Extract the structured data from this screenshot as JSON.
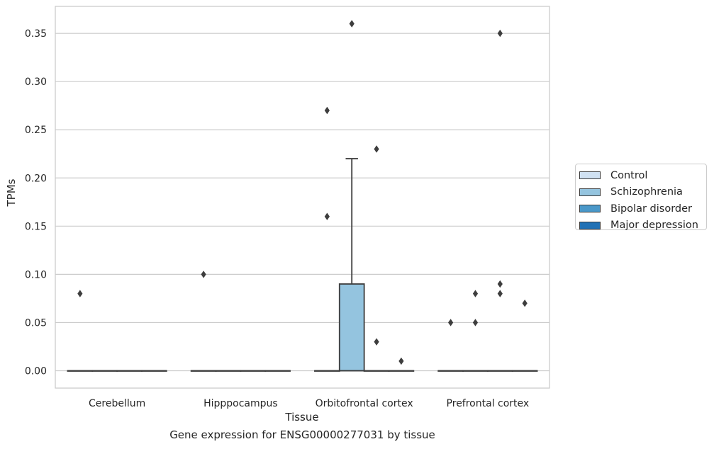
{
  "chart_data": {
    "type": "box",
    "title": "",
    "caption": "Gene expression for ENSG00000277031 by tissue",
    "xlabel": "Tissue",
    "ylabel": "TPMs",
    "ylim": [
      -0.018,
      0.378
    ],
    "yticks": [
      "0.00",
      "0.05",
      "0.10",
      "0.15",
      "0.20",
      "0.25",
      "0.30",
      "0.35"
    ],
    "ytick_values": [
      0,
      0.05,
      0.1,
      0.15,
      0.2,
      0.25,
      0.3,
      0.35
    ],
    "categories": [
      "Cerebellum",
      "Hipppocampus",
      "Orbitofrontal cortex",
      "Prefrontal cortex"
    ],
    "grid": "horizontal",
    "legend_position": "right",
    "series": [
      {
        "name": "Control",
        "color": "#d0e1f2",
        "boxes": [
          {
            "category": "Cerebellum",
            "q1": 0,
            "median": 0,
            "q3": 0,
            "whisker_low": 0,
            "whisker_high": 0,
            "outliers": [
              0.08
            ]
          },
          {
            "category": "Hipppocampus",
            "q1": 0,
            "median": 0,
            "q3": 0,
            "whisker_low": 0,
            "whisker_high": 0,
            "outliers": [
              0.1
            ]
          },
          {
            "category": "Orbitofrontal cortex",
            "q1": 0,
            "median": 0,
            "q3": 0,
            "whisker_low": 0,
            "whisker_high": 0,
            "outliers": [
              0.16,
              0.27
            ]
          },
          {
            "category": "Prefrontal cortex",
            "q1": 0,
            "median": 0,
            "q3": 0,
            "whisker_low": 0,
            "whisker_high": 0,
            "outliers": [
              0.05
            ]
          }
        ]
      },
      {
        "name": "Schizophrenia",
        "color": "#94c4df",
        "boxes": [
          {
            "category": "Cerebellum",
            "q1": 0,
            "median": 0,
            "q3": 0,
            "whisker_low": 0,
            "whisker_high": 0,
            "outliers": []
          },
          {
            "category": "Hipppocampus",
            "q1": 0,
            "median": 0,
            "q3": 0,
            "whisker_low": 0,
            "whisker_high": 0,
            "outliers": []
          },
          {
            "category": "Orbitofrontal cortex",
            "q1": 0,
            "median": 0,
            "q3": 0.09,
            "whisker_low": 0,
            "whisker_high": 0.22,
            "outliers": [
              0.36
            ]
          },
          {
            "category": "Prefrontal cortex",
            "q1": 0,
            "median": 0,
            "q3": 0,
            "whisker_low": 0,
            "whisker_high": 0,
            "outliers": [
              0.05,
              0.08
            ]
          }
        ]
      },
      {
        "name": "Bipolar disorder",
        "color": "#4a98c9",
        "boxes": [
          {
            "category": "Cerebellum",
            "q1": 0,
            "median": 0,
            "q3": 0,
            "whisker_low": 0,
            "whisker_high": 0,
            "outliers": []
          },
          {
            "category": "Hipppocampus",
            "q1": 0,
            "median": 0,
            "q3": 0,
            "whisker_low": 0,
            "whisker_high": 0,
            "outliers": []
          },
          {
            "category": "Orbitofrontal cortex",
            "q1": 0,
            "median": 0,
            "q3": 0,
            "whisker_low": 0,
            "whisker_high": 0,
            "outliers": [
              0.23,
              0.03
            ]
          },
          {
            "category": "Prefrontal cortex",
            "q1": 0,
            "median": 0,
            "q3": 0,
            "whisker_low": 0,
            "whisker_high": 0,
            "outliers": [
              0.35,
              0.09,
              0.08
            ]
          }
        ]
      },
      {
        "name": "Major depression",
        "color": "#2171b5",
        "boxes": [
          {
            "category": "Cerebellum",
            "q1": 0,
            "median": 0,
            "q3": 0,
            "whisker_low": 0,
            "whisker_high": 0,
            "outliers": []
          },
          {
            "category": "Hipppocampus",
            "q1": 0,
            "median": 0,
            "q3": 0,
            "whisker_low": 0,
            "whisker_high": 0,
            "outliers": []
          },
          {
            "category": "Orbitofrontal cortex",
            "q1": 0,
            "median": 0,
            "q3": 0,
            "whisker_low": 0,
            "whisker_high": 0,
            "outliers": [
              0.01
            ]
          },
          {
            "category": "Prefrontal cortex",
            "q1": 0,
            "median": 0,
            "q3": 0,
            "whisker_low": 0,
            "whisker_high": 0,
            "outliers": [
              0.07
            ]
          }
        ]
      }
    ]
  }
}
